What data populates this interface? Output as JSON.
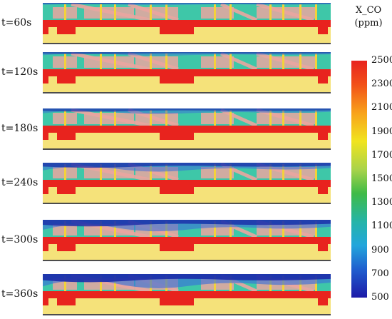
{
  "panels": [
    {
      "time_label": "t=60s",
      "co_level": 0.05
    },
    {
      "time_label": "t=120s",
      "co_level": 0.15
    },
    {
      "time_label": "t=180s",
      "co_level": 0.3
    },
    {
      "time_label": "t=240s",
      "co_level": 0.55
    },
    {
      "time_label": "t=300s",
      "co_level": 0.75
    },
    {
      "time_label": "t=360s",
      "co_level": 0.95
    }
  ],
  "colorbar": {
    "title_line1": "X_CO",
    "title_line2": "(ppm)",
    "ticks": [
      "2500",
      "2300",
      "2100",
      "1900",
      "1700",
      "1500",
      "1300",
      "1100",
      "900",
      "700",
      "500"
    ]
  },
  "colors": {
    "smoke": "#1a2aa8",
    "smoke_light": "#3a6fd8",
    "slab": "#e8231e",
    "ground": "#f5e27a",
    "cabin": "#3ec7a8",
    "pink": "#eaa6a0",
    "column": "#f3d23a"
  }
}
